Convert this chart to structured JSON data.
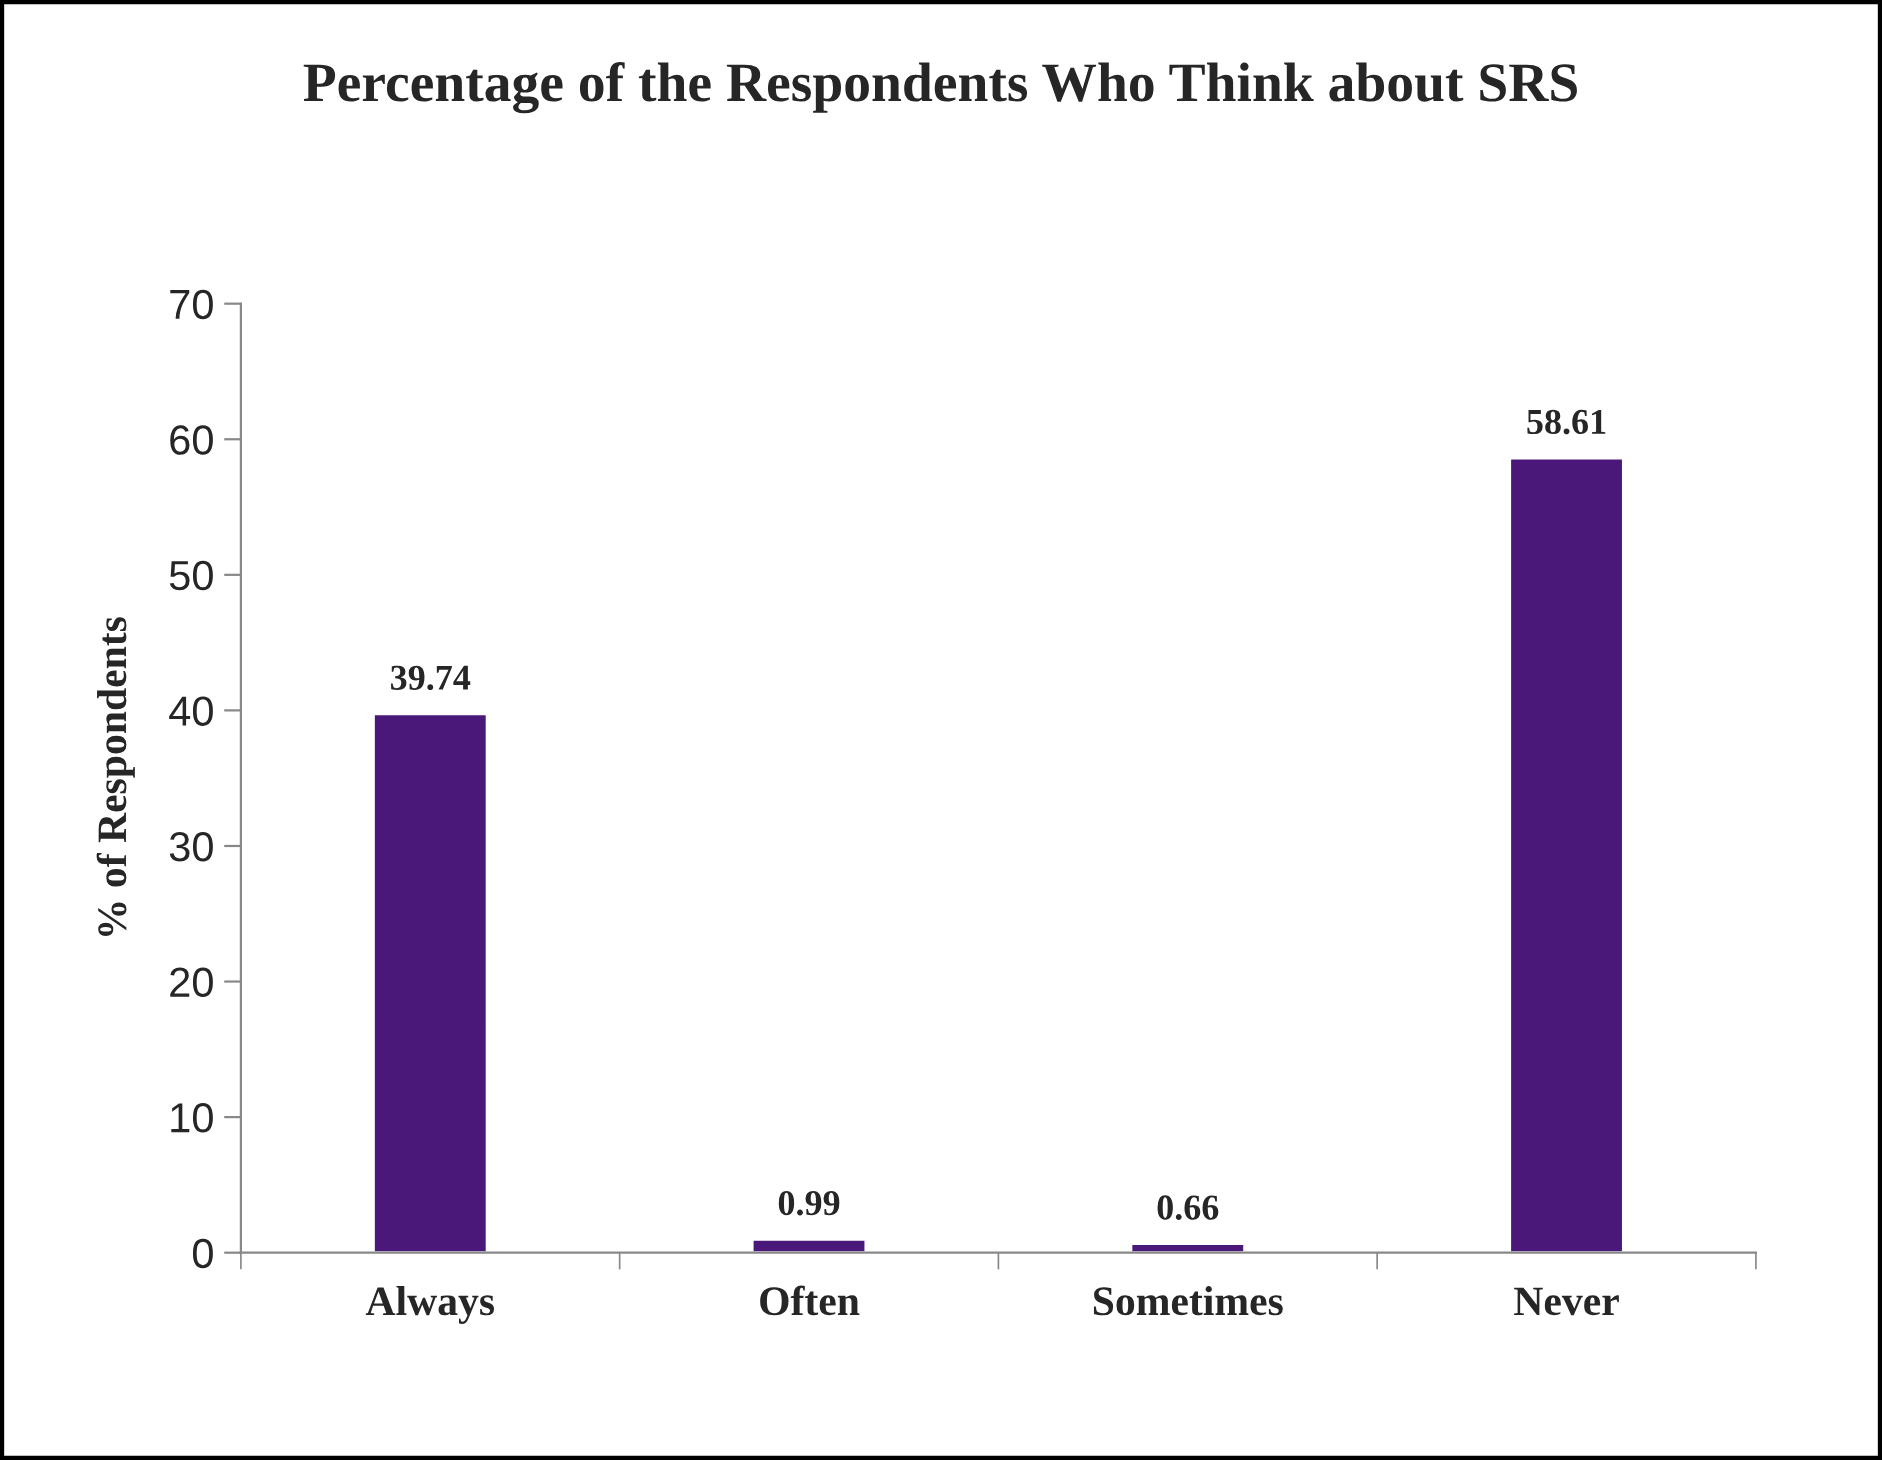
{
  "chart_data": {
    "type": "bar",
    "title": "Percentage of the Respondents Who Think about SRS",
    "ylabel": "% of Respondents",
    "categories": [
      "Always",
      "Often",
      "Sometimes",
      "Never"
    ],
    "values": [
      39.74,
      0.99,
      0.66,
      58.61
    ],
    "color": "#4a1878",
    "ylim": [
      0,
      70
    ],
    "yticks": [
      0,
      10,
      20,
      30,
      40,
      50,
      60,
      70
    ],
    "data_labels": true,
    "grid": false
  }
}
